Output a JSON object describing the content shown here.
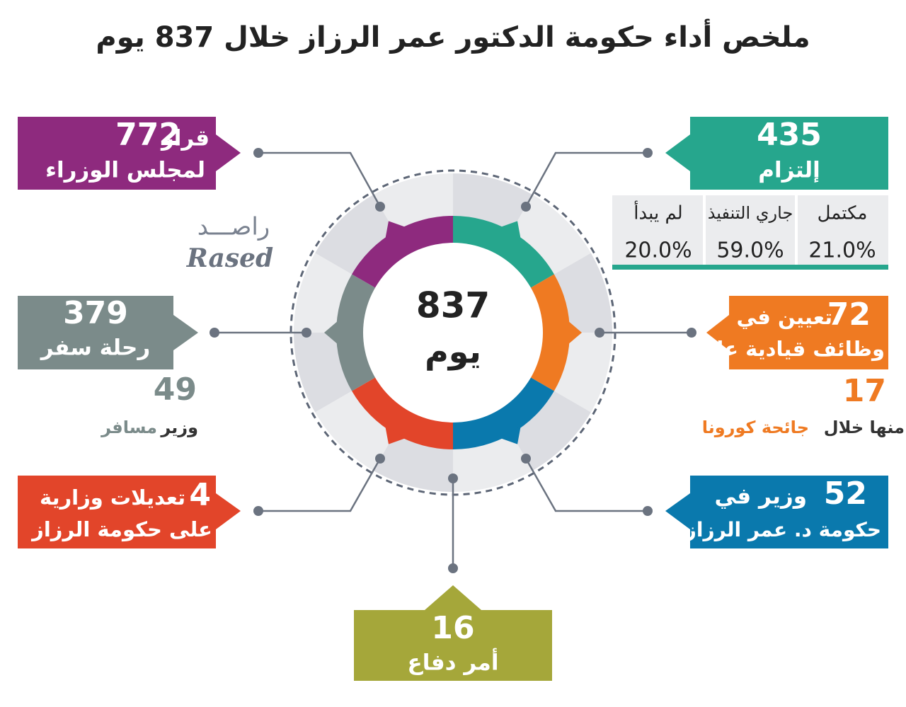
{
  "header": {
    "title": "ملخص أداء حكومة الدكتور عمر الرزاز خلال 837 يوم"
  },
  "center": {
    "number": 837,
    "unit": "يوم"
  },
  "brand": {
    "arabic": "راصـــد",
    "latin": "Rased"
  },
  "decisions": {
    "number": 772,
    "line1": "قرار",
    "line2": "لمجلس الوزراء"
  },
  "commitments": {
    "number": 435,
    "label": "إلتزام",
    "table": {
      "headers": [
        "مكتمل",
        "جاري التنفيذ",
        "لم يبدأ"
      ],
      "values": [
        "21.0%",
        "59.0%",
        "20.0%"
      ]
    }
  },
  "travel": {
    "number": 379,
    "label": "رحلة سفر",
    "sub_number": 49,
    "sub_word": "وزير",
    "sub_highlight": "مسافر"
  },
  "appointments": {
    "number": 72,
    "line1": "تعيين في",
    "line2": "وظائف قيادية عليا",
    "sub_number": 17,
    "sub_text": "منها خلال",
    "sub_highlight": "جائحة كورونا"
  },
  "reshuffles": {
    "number": 4,
    "line1": "تعديلات وزارية",
    "line2": "على حكومة الرزاز"
  },
  "ministers": {
    "number": 52,
    "line1": "وزير في",
    "line2": "حكومة د. عمر الرزاز"
  },
  "defense": {
    "number": 16,
    "label": "أمر دفاع"
  }
}
